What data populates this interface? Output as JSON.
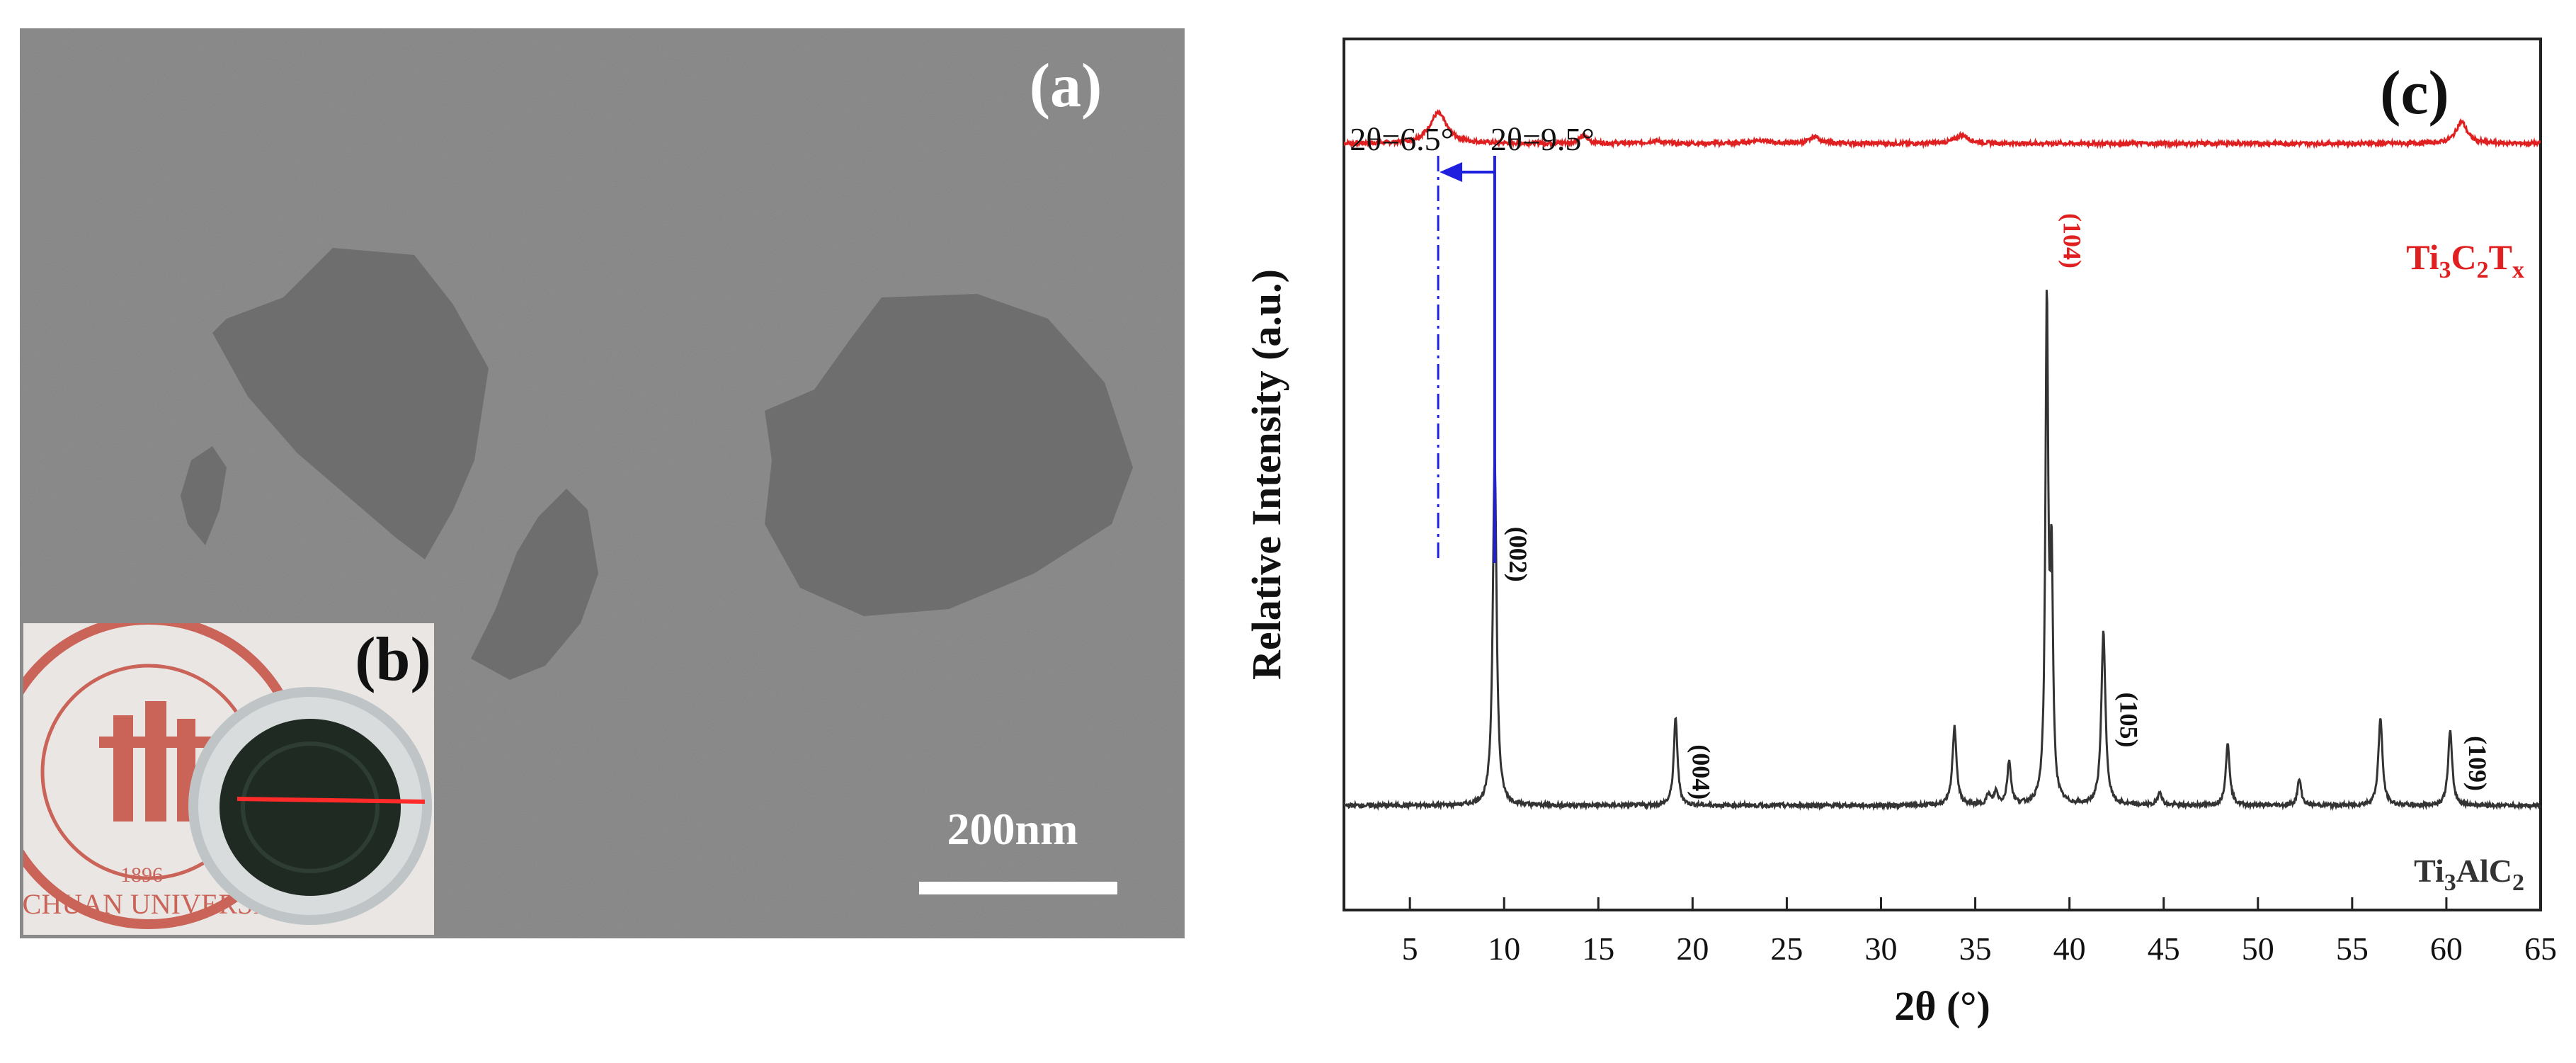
{
  "panel_a": {
    "label": "(a)",
    "scale_bar_label": "200nm",
    "background_color": "#8f8f8f",
    "flake_color": "#6e6e6e"
  },
  "panel_b": {
    "label": "(b)",
    "logo_text": "SICHUAN UNIVERSITY",
    "logo_year": "1896",
    "logo_color": "#c0392b",
    "laser_color": "#ff2a2a"
  },
  "chart_data": {
    "type": "line",
    "panel_label": "(c)",
    "title": "",
    "xlabel": "2θ (°)",
    "ylabel": "Relative Intensity (a.u.)",
    "xlim": [
      1.5,
      65
    ],
    "x_ticks": [
      5,
      10,
      15,
      20,
      25,
      30,
      35,
      40,
      45,
      50,
      55,
      60,
      65
    ],
    "ylim": [
      0,
      100
    ],
    "series": [
      {
        "name": "Ti3C2Tx",
        "label_parts": [
          "Ti",
          "3",
          "C",
          "2",
          "T",
          "x"
        ],
        "color": "#e02020",
        "baseline": 88,
        "peaks": [
          {
            "x": 6.5,
            "h": 3.5,
            "w": 0.55
          },
          {
            "x": 14.2,
            "h": 0.8,
            "w": 0.3
          },
          {
            "x": 18.0,
            "h": 0.3,
            "w": 0.4
          },
          {
            "x": 23.5,
            "h": 0.4,
            "w": 0.5
          },
          {
            "x": 26.5,
            "h": 0.8,
            "w": 0.3
          },
          {
            "x": 34.3,
            "h": 1.0,
            "w": 0.4
          },
          {
            "x": 60.8,
            "h": 2.5,
            "w": 0.35
          }
        ]
      },
      {
        "name": "Ti3AlC2",
        "label_parts": [
          "Ti",
          "3",
          "AlC",
          "2"
        ],
        "color": "#333333",
        "baseline": 12,
        "peaks": [
          {
            "x": 9.5,
            "h": 40,
            "w": 0.12
          },
          {
            "x": 19.1,
            "h": 10,
            "w": 0.12
          },
          {
            "x": 33.9,
            "h": 9,
            "w": 0.13
          },
          {
            "x": 35.7,
            "h": 1.2,
            "w": 0.12
          },
          {
            "x": 36.1,
            "h": 1.5,
            "w": 0.12
          },
          {
            "x": 36.8,
            "h": 5,
            "w": 0.12
          },
          {
            "x": 38.8,
            "h": 57,
            "w": 0.09
          },
          {
            "x": 39.05,
            "h": 26,
            "w": 0.09
          },
          {
            "x": 41.8,
            "h": 20,
            "w": 0.13
          },
          {
            "x": 44.8,
            "h": 1.6,
            "w": 0.12
          },
          {
            "x": 48.4,
            "h": 7,
            "w": 0.13
          },
          {
            "x": 52.2,
            "h": 3,
            "w": 0.12
          },
          {
            "x": 56.5,
            "h": 10,
            "w": 0.13
          },
          {
            "x": 60.2,
            "h": 8.5,
            "w": 0.13
          }
        ]
      }
    ],
    "peak_labels": [
      {
        "text": "(002)",
        "x": 10.3,
        "y": 44,
        "color": "#111111"
      },
      {
        "text": "(004)",
        "x": 20.0,
        "y": 19,
        "color": "#111111"
      },
      {
        "text": "(104)",
        "x": 39.7,
        "y": 80,
        "color": "#e02020"
      },
      {
        "text": "(105)",
        "x": 42.7,
        "y": 25,
        "color": "#111111"
      },
      {
        "text": "(109)",
        "x": 61.2,
        "y": 20,
        "color": "#111111"
      }
    ],
    "annotations": {
      "shift_from": 9.5,
      "shift_to": 6.5,
      "label_left": "2θ=6.5°",
      "label_right": "2θ=9.5°",
      "arrow_color": "#1f1fe0"
    }
  }
}
